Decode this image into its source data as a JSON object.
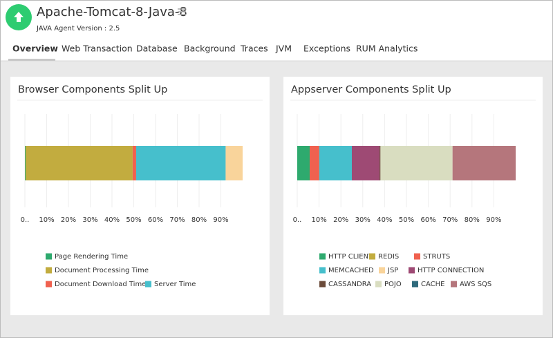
{
  "header": {
    "title": "Apache-Tomcat-8-Java-8",
    "subtitle": "JAVA Agent Version : 2.5"
  },
  "tabs": [
    "Overview",
    "Web Transaction",
    "Database",
    "Background",
    "Traces",
    "JVM",
    "Exceptions",
    "RUM Analytics"
  ],
  "active_tab": 0,
  "chart_data": [
    {
      "type": "stacked-bar-horizontal",
      "title": "Browser Components Split Up",
      "categories": [
        null
      ],
      "xlim": [
        0,
        100
      ],
      "xticks": [
        {
          "value": 0,
          "label": "0.."
        },
        {
          "value": 10,
          "label": "10%"
        },
        {
          "value": 20,
          "label": "20%"
        },
        {
          "value": 30,
          "label": "30%"
        },
        {
          "value": 40,
          "label": "40%"
        },
        {
          "value": 50,
          "label": "50%"
        },
        {
          "value": 60,
          "label": "60%"
        },
        {
          "value": 70,
          "label": "70%"
        },
        {
          "value": 80,
          "label": "80%"
        },
        {
          "value": 90,
          "label": "90%"
        }
      ],
      "grid": true,
      "series": [
        {
          "name": "Page Rendering Time",
          "color": "#2eaa6e",
          "values": [
            0.3
          ]
        },
        {
          "name": "Document Processing Time",
          "color": "#c2ac3f",
          "values": [
            49.2
          ]
        },
        {
          "name": "Document Download Time",
          "color": "#f0614f",
          "values": [
            1.6
          ]
        },
        {
          "name": "Server Time",
          "color": "#46bfcc",
          "values": [
            41.1
          ]
        },
        {
          "color": "#f9d49b",
          "values": [
            7.8
          ]
        }
      ]
    },
    {
      "type": "stacked-bar-horizontal",
      "title": "Appserver Components Split Up",
      "categories": [
        null
      ],
      "xlim": [
        0,
        100
      ],
      "xticks": [
        {
          "value": 0,
          "label": "0.."
        },
        {
          "value": 10,
          "label": "10%"
        },
        {
          "value": 20,
          "label": "20%"
        },
        {
          "value": 30,
          "label": "30%"
        },
        {
          "value": 40,
          "label": "40%"
        },
        {
          "value": 50,
          "label": "50%"
        },
        {
          "value": 60,
          "label": "60%"
        },
        {
          "value": 70,
          "label": "70%"
        },
        {
          "value": 80,
          "label": "80%"
        },
        {
          "value": 90,
          "label": "90%"
        }
      ],
      "grid": true,
      "series": [
        {
          "name": "HTTP CLIENT",
          "color": "#2eaa6e",
          "values": [
            5.7
          ]
        },
        {
          "name": "REDIS",
          "color": "#c2ac3f",
          "values": [
            0
          ]
        },
        {
          "name": "STRUTS",
          "color": "#f0614f",
          "values": [
            4.4
          ]
        },
        {
          "name": "MEMCACHED",
          "color": "#46bfcc",
          "values": [
            14.9
          ]
        },
        {
          "name": "JSP",
          "color": "#f9d49b",
          "values": [
            0
          ]
        },
        {
          "name": "HTTP CONNECTION",
          "color": "#9e4a74",
          "values": [
            12.7
          ]
        },
        {
          "name": "CASSANDRA",
          "color": "#6b4b3a",
          "values": [
            0.4
          ]
        },
        {
          "name": "POJO",
          "color": "#d9ddc0",
          "values": [
            33.0
          ]
        },
        {
          "name": "CACHE",
          "color": "#2f6a7c",
          "values": [
            0
          ]
        },
        {
          "name": "AWS SQS",
          "color": "#b5767c",
          "values": [
            28.9
          ]
        }
      ]
    }
  ]
}
